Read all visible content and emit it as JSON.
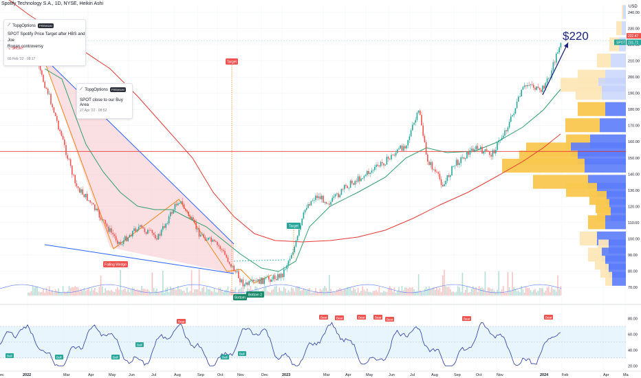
{
  "header": {
    "symbol_line": "Spotify Technology S.A., 1D, NYSE, Heikin Ashi"
  },
  "ideas": [
    {
      "author": "TopgOptions",
      "badge": "PREMIUM",
      "title_lines": [
        "SPOT Spotify Price Target after HBS and Joe",
        "Rogan controversy"
      ],
      "direction": "SHORT",
      "date": "03 Feb '22 · 08:17"
    },
    {
      "author": "TopgOptions",
      "badge": "PREMIUM",
      "title_lines": [
        "SPOT close to our Buy Area"
      ],
      "date": "27 Apr '22 · 08:52"
    }
  ],
  "annotations": {
    "target_top": "Target",
    "target_low": "Target",
    "falling_wedge": "Falling Wedge",
    "bottom": "Bottom",
    "bottom2": "Bottom 2",
    "price_target": "$220"
  },
  "price_axis": {
    "currency": "USD",
    "ticks": [
      "240.00",
      "230.00",
      "220.00",
      "210.00",
      "200.00",
      "190.00",
      "180.00",
      "170.00",
      "160.00",
      "150.00",
      "140.00",
      "130.00",
      "120.00",
      "110.00",
      "100.00",
      "90.00",
      "80.00",
      "70.00"
    ],
    "last_price_label": "222.47",
    "spot_tag": "SPOT",
    "spot_price": "231.71"
  },
  "rsi_axis": {
    "ticks": [
      "80.00",
      "60.00",
      "40.00",
      "20.00"
    ],
    "bear_label": "Bear",
    "bull_label": "Bull"
  },
  "time_axis": [
    "ec",
    "2022",
    "Mar",
    "Apr",
    "May",
    "Jun",
    "Jul",
    "Aug",
    "Sep",
    "Oct",
    "Nov",
    "Dec",
    "2023",
    "Mar",
    "Apr",
    "May",
    "Jun",
    "Jul",
    "Aug",
    "Sep",
    "Oct",
    "Nov",
    "2024",
    "Feb",
    "Apr",
    "Ma"
  ],
  "colors": {
    "up": "#26a69a",
    "down": "#ef5350",
    "wedge_fill": "#f8c7cc",
    "wedge_line": "#2962ff",
    "ma_red": "#e53935",
    "ma_green": "#2e9e6a",
    "vp_blue": "#5c7cfa",
    "vp_orange": "#f9c74f",
    "rsi_line": "#3949ab",
    "rsi_band": "#e3f2fd"
  },
  "chart_data": {
    "type": "candlestick",
    "price_range": [
      66,
      245
    ],
    "x_start": "Dec 2021",
    "x_end": "Feb 2024",
    "key_points": [
      {
        "date": "Dec 2021",
        "price": 240
      },
      {
        "date": "Feb 2022",
        "price": 190
      },
      {
        "date": "Mar 2022",
        "price": 120
      },
      {
        "date": "May 2022",
        "price": 92
      },
      {
        "date": "Aug 2022",
        "price": 125
      },
      {
        "date": "Oct 2022",
        "price": 85
      },
      {
        "date": "Nov 2022",
        "price": 70
      },
      {
        "date": "Dec 2022",
        "price": 80
      },
      {
        "date": "Mar 2023",
        "price": 140
      },
      {
        "date": "Jul 2023",
        "price": 182
      },
      {
        "date": "Aug 2023",
        "price": 135
      },
      {
        "date": "Nov 2023",
        "price": 180
      },
      {
        "date": "Jan 2024",
        "price": 190
      },
      {
        "date": "Feb 2024",
        "price": 222
      }
    ],
    "rsi_range": [
      15,
      90
    ]
  }
}
